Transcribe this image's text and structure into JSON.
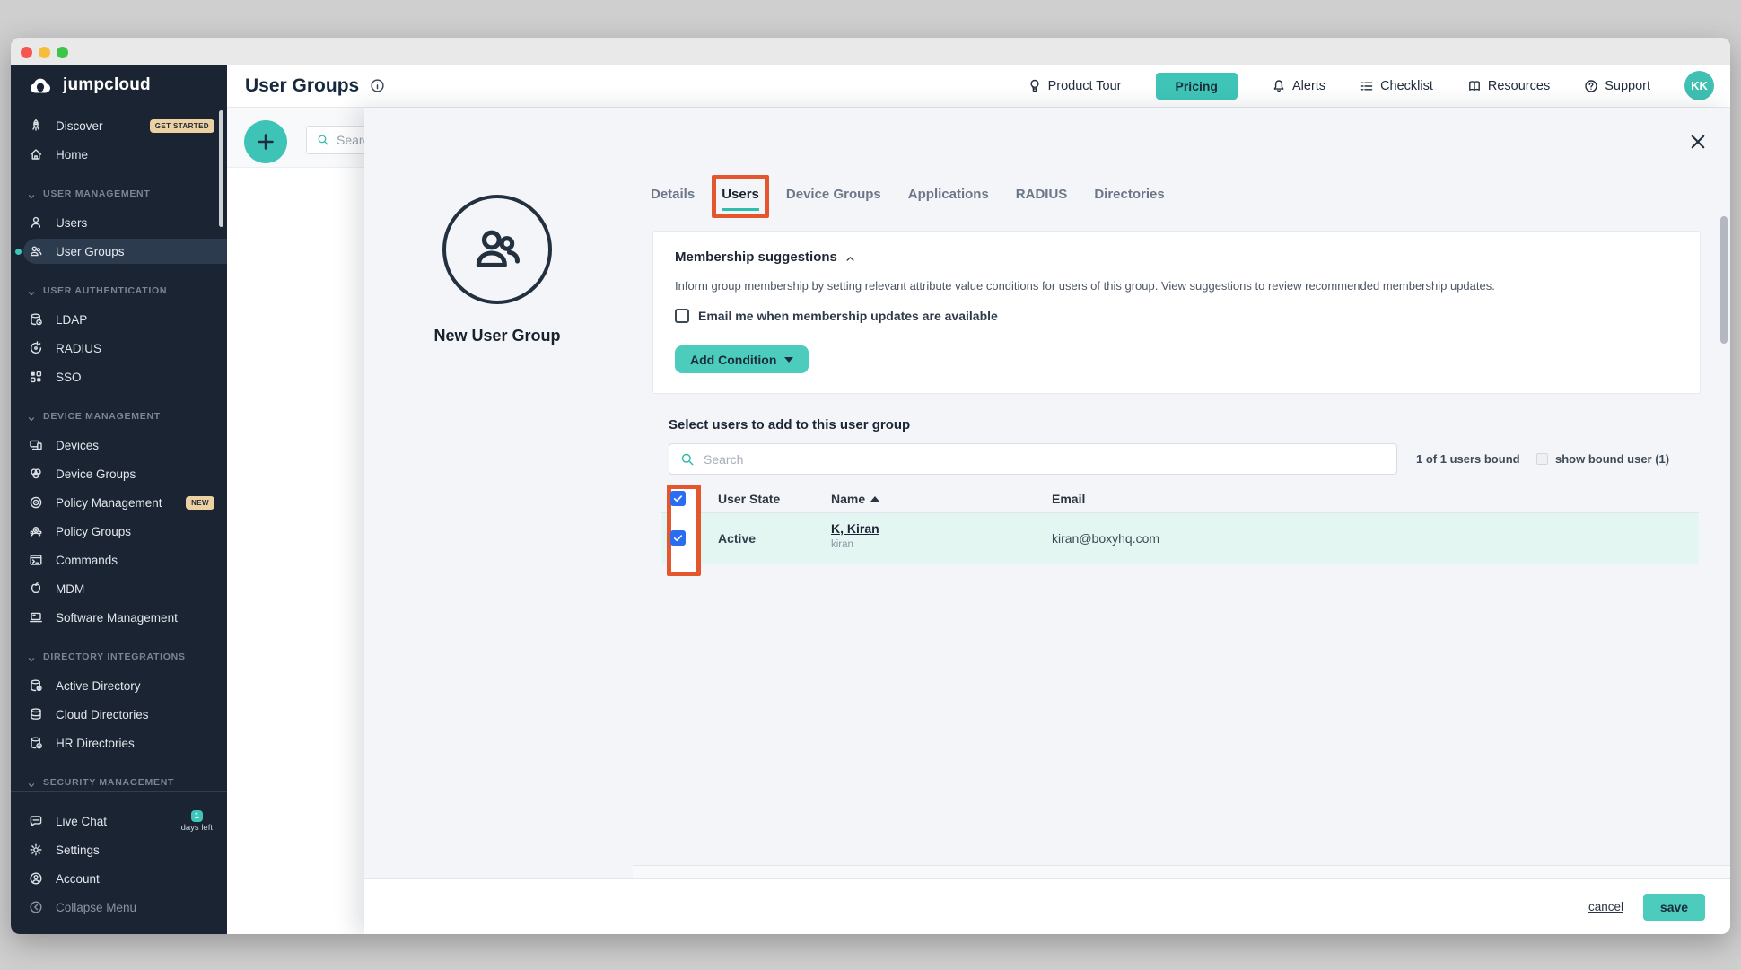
{
  "sidebar": {
    "logo": "jumpcloud",
    "sections": [
      {
        "header": null,
        "items": [
          {
            "icon": "rocket",
            "label": "Discover",
            "badge": "GET STARTED"
          },
          {
            "icon": "home",
            "label": "Home"
          }
        ]
      },
      {
        "header": "USER MANAGEMENT",
        "items": [
          {
            "icon": "user",
            "label": "Users"
          },
          {
            "icon": "user-group",
            "label": "User Groups",
            "active": true
          }
        ]
      },
      {
        "header": "USER AUTHENTICATION",
        "items": [
          {
            "icon": "ldap",
            "label": "LDAP"
          },
          {
            "icon": "radius",
            "label": "RADIUS"
          },
          {
            "icon": "sso",
            "label": "SSO"
          }
        ]
      },
      {
        "header": "DEVICE MANAGEMENT",
        "items": [
          {
            "icon": "devices",
            "label": "Devices"
          },
          {
            "icon": "device-group",
            "label": "Device Groups"
          },
          {
            "icon": "policy",
            "label": "Policy Management",
            "badge": "NEW"
          },
          {
            "icon": "policy-group",
            "label": "Policy Groups"
          },
          {
            "icon": "commands",
            "label": "Commands"
          },
          {
            "icon": "apple",
            "label": "MDM"
          },
          {
            "icon": "software",
            "label": "Software Management"
          }
        ]
      },
      {
        "header": "DIRECTORY INTEGRATIONS",
        "items": [
          {
            "icon": "directory",
            "label": "Active Directory"
          },
          {
            "icon": "cloud-directory",
            "label": "Cloud Directories"
          },
          {
            "icon": "hr-directory",
            "label": "HR Directories"
          }
        ]
      },
      {
        "header": "SECURITY MANAGEMENT",
        "items": []
      }
    ],
    "footer_items": [
      {
        "icon": "chat",
        "label": "Live Chat",
        "badge": "1",
        "badge_sub": "days left"
      },
      {
        "icon": "gear",
        "label": "Settings"
      },
      {
        "icon": "account",
        "label": "Account"
      },
      {
        "icon": "collapse",
        "label": "Collapse Menu",
        "muted": true
      }
    ]
  },
  "header": {
    "title": "User Groups",
    "actions": [
      {
        "icon": "balloon",
        "label": "Product Tour",
        "type": "link"
      },
      {
        "label": "Pricing",
        "type": "button"
      },
      {
        "icon": "bell",
        "label": "Alerts",
        "type": "link"
      },
      {
        "icon": "checklist",
        "label": "Checklist",
        "type": "link"
      },
      {
        "icon": "book",
        "label": "Resources",
        "type": "link"
      },
      {
        "icon": "question",
        "label": "Support",
        "type": "link"
      }
    ],
    "avatar": "KK"
  },
  "toolbar": {
    "search_placeholder": "Search"
  },
  "modal": {
    "tabs": [
      {
        "label": "Details"
      },
      {
        "label": "Users",
        "active": true,
        "annotated": true
      },
      {
        "label": "Device Groups"
      },
      {
        "label": "Applications"
      },
      {
        "label": "RADIUS"
      },
      {
        "label": "Directories"
      }
    ],
    "group_name": "New User Group",
    "membership": {
      "title": "Membership suggestions",
      "description": "Inform group membership by setting relevant attribute value conditions for users of this group. View suggestions to review recommended membership updates.",
      "email_opt_label": "Email me when membership updates are available",
      "add_condition_label": "Add Condition"
    },
    "users": {
      "heading": "Select users to add to this user group",
      "search_placeholder": "Search",
      "bound_summary": "1 of 1 users bound",
      "show_bound_label": "show bound user (1)",
      "columns": [
        "User State",
        "Name",
        "Email"
      ],
      "header_checked": true,
      "rows": [
        {
          "state": "Active",
          "name": "K, Kiran",
          "username": "kiran",
          "email": "kiran@boxyhq.com",
          "checked": true
        }
      ]
    },
    "footer": {
      "cancel": "cancel",
      "save": "save"
    }
  },
  "colors": {
    "teal_accent": "#3fc5b7",
    "teal_button": "#4bccbd",
    "annotation_orange": "#e4572e",
    "checkbox_blue": "#2a6df0",
    "row_highlight": "#e4f6f1",
    "sidebar_bg": "#1a2433"
  }
}
